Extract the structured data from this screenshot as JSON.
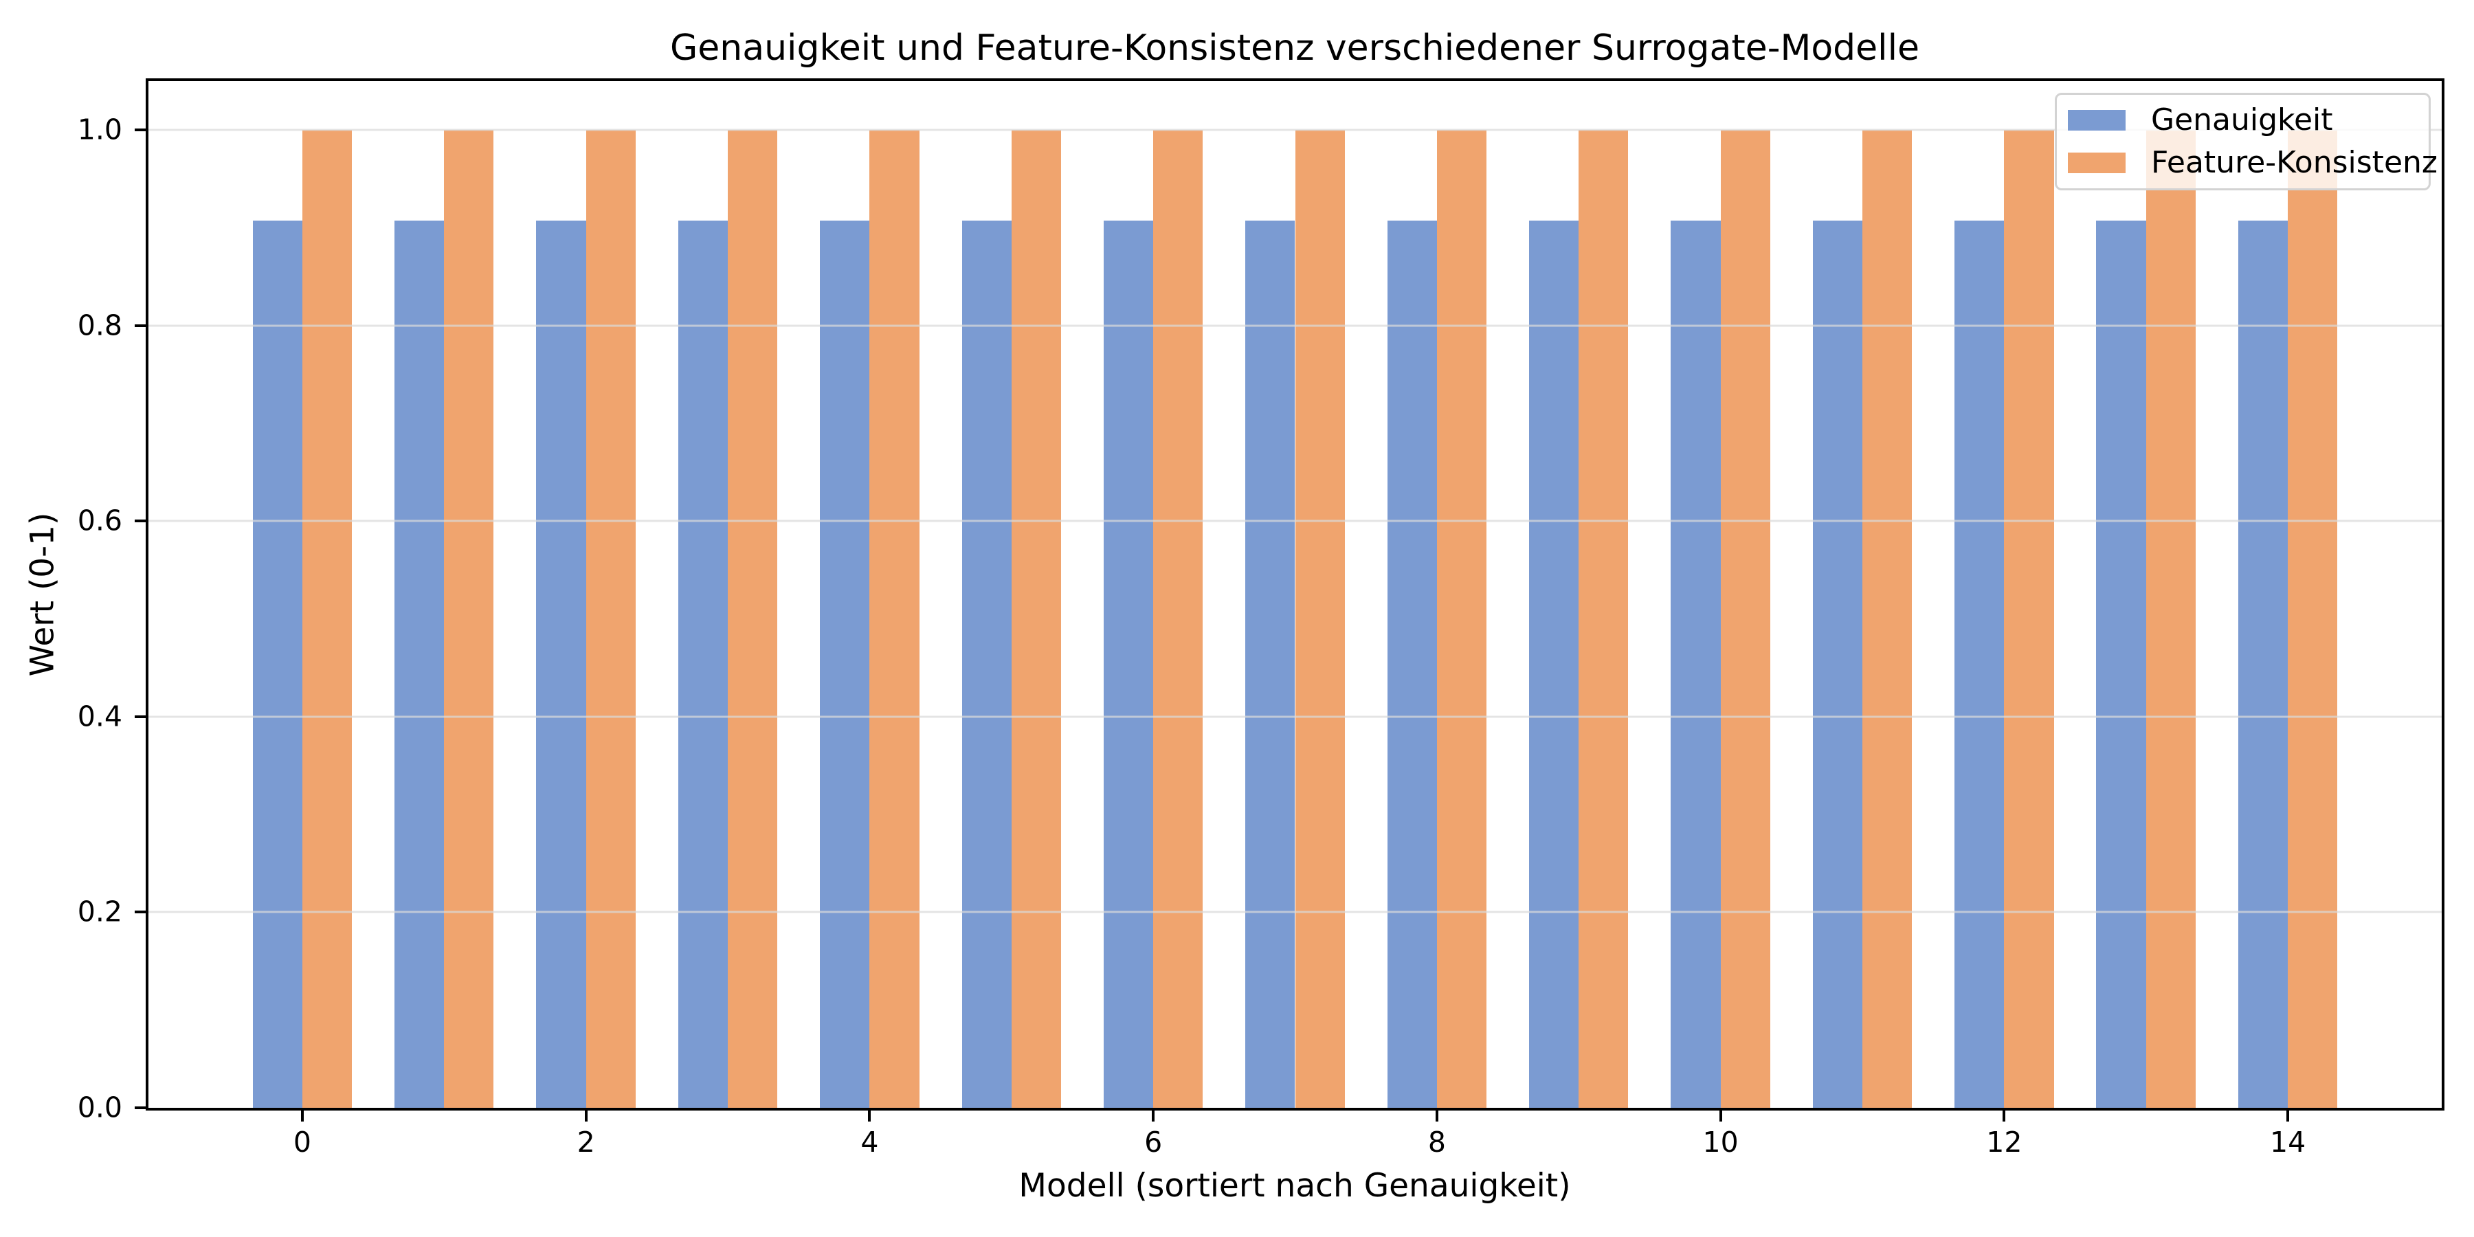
{
  "chart_data": {
    "type": "bar",
    "title": "Genauigkeit und Feature-Konsistenz verschiedener Surrogate-Modelle",
    "xlabel": "Modell (sortiert nach Genauigkeit)",
    "ylabel": "Wert (0-1)",
    "categories": [
      0,
      1,
      2,
      3,
      4,
      5,
      6,
      7,
      8,
      9,
      10,
      11,
      12,
      13,
      14
    ],
    "series": [
      {
        "name": "Genauigkeit",
        "color": "#7b9bd2",
        "values": [
          0.907,
          0.907,
          0.907,
          0.907,
          0.907,
          0.907,
          0.907,
          0.907,
          0.907,
          0.907,
          0.907,
          0.907,
          0.907,
          0.907,
          0.907
        ]
      },
      {
        "name": "Feature-Konsistenz",
        "color": "#f0a46e",
        "values": [
          1.0,
          1.0,
          1.0,
          1.0,
          1.0,
          1.0,
          1.0,
          1.0,
          1.0,
          1.0,
          1.0,
          1.0,
          1.0,
          1.0,
          1.0
        ]
      }
    ],
    "bar_width": 0.35,
    "xlim": [
      -1.085,
      15.085
    ],
    "ylim": [
      0,
      1.05
    ],
    "xticks": [
      0,
      2,
      4,
      6,
      8,
      10,
      12,
      14
    ],
    "xtick_labels": [
      "0",
      "2",
      "4",
      "6",
      "8",
      "10",
      "12",
      "14"
    ],
    "yticks": [
      0.0,
      0.2,
      0.4,
      0.6,
      0.8,
      1.0
    ],
    "ytick_labels": [
      "0.0",
      "0.2",
      "0.4",
      "0.6",
      "0.8",
      "1.0"
    ],
    "grid": true,
    "grid_axis": "y",
    "grid_color": "#e6e6e6",
    "axis_color": "#000000",
    "legend_position": "upper right"
  }
}
